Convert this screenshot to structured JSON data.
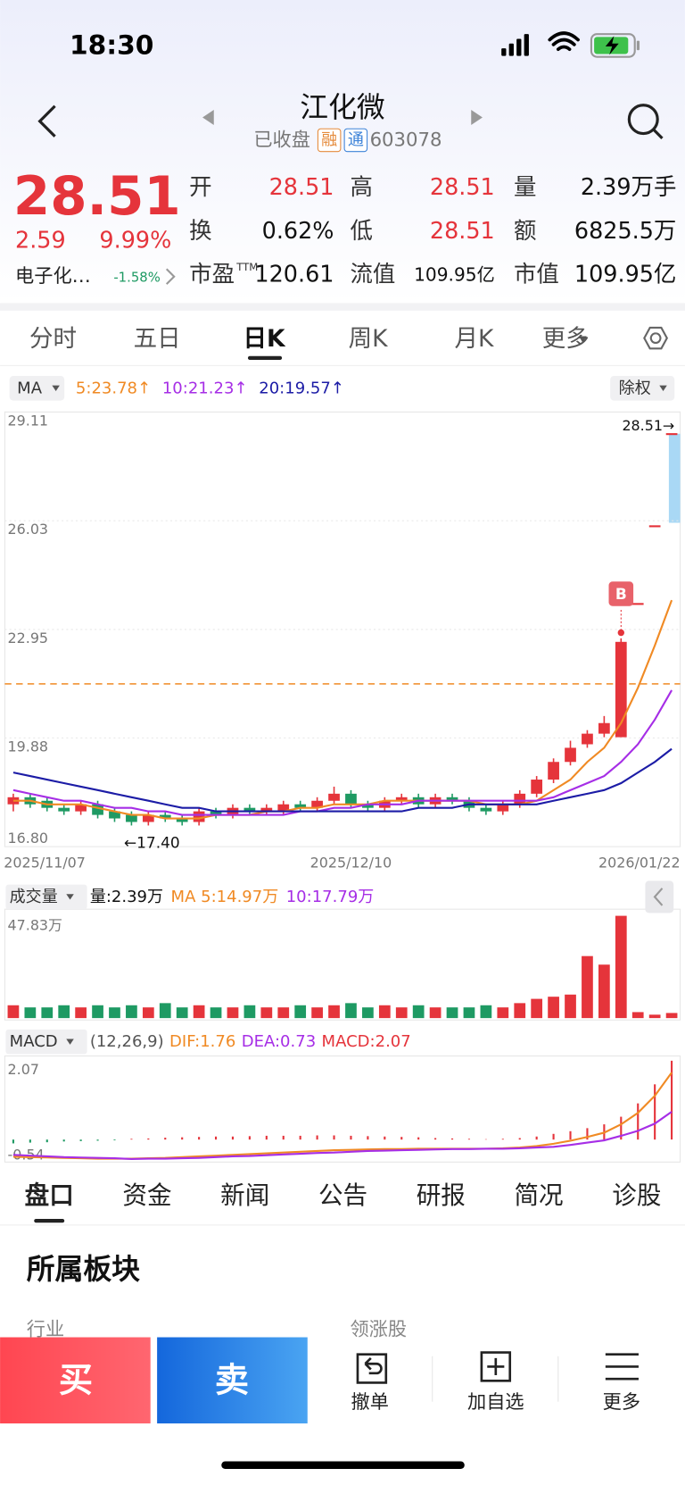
{
  "status_bar": {
    "time": "18:30"
  },
  "header": {
    "title": "江化微",
    "status": "已收盘",
    "tags": [
      "融",
      "通"
    ],
    "code": "603078"
  },
  "quote": {
    "price": "28.51",
    "change": "2.59",
    "change_pct": "9.99%",
    "sector": "电子化…",
    "sector_change": "-1.58%",
    "fields": [
      {
        "label": "开",
        "value": "28.51"
      },
      {
        "label": "高",
        "value": "28.51"
      },
      {
        "label": "量",
        "value": "2.39万手"
      },
      {
        "label": "换",
        "value": "0.62%"
      },
      {
        "label": "低",
        "value": "28.51"
      },
      {
        "label": "额",
        "value": "6825.5万"
      },
      {
        "label": "市盈",
        "sup": "TTM",
        "value": "120.61"
      },
      {
        "label": "流值",
        "value": "109.95亿"
      },
      {
        "label": "市值",
        "value": "109.95亿"
      }
    ]
  },
  "tabs": [
    "分时",
    "五日",
    "日K",
    "周K",
    "月K",
    "更多"
  ],
  "chart_data": [
    {
      "type": "candlestick",
      "indicator": "MA",
      "adjust": "除权",
      "categories": [
        "2025/11/07",
        null,
        null,
        null,
        null,
        null,
        null,
        null,
        null,
        null,
        null,
        null,
        null,
        null,
        null,
        null,
        null,
        null,
        null,
        null,
        "2025/12/10",
        null,
        null,
        null,
        null,
        null,
        null,
        null,
        null,
        null,
        null,
        null,
        null,
        null,
        null,
        null,
        null,
        null,
        null,
        "2026/01/22"
      ],
      "ylim": [
        16.8,
        29.11
      ],
      "yticks": [
        29.11,
        26.03,
        22.95,
        19.88,
        {
          "value": 16.8,
          "label": "16.80"
        }
      ],
      "up_color": "#e5343b",
      "down_color": "#1e9a63",
      "candles": [
        [
          18.0,
          18.2,
          18.3,
          17.8
        ],
        [
          18.2,
          18.0,
          18.3,
          17.9
        ],
        [
          18.1,
          17.9,
          18.2,
          17.8
        ],
        [
          17.9,
          17.8,
          18.0,
          17.7
        ],
        [
          17.8,
          18.0,
          18.1,
          17.7
        ],
        [
          18.0,
          17.7,
          18.1,
          17.6
        ],
        [
          17.8,
          17.6,
          17.9,
          17.5
        ],
        [
          17.7,
          17.5,
          17.8,
          17.4
        ],
        [
          17.5,
          17.7,
          17.8,
          17.4
        ],
        [
          17.7,
          17.6,
          17.8,
          17.5
        ],
        [
          17.6,
          17.5,
          17.7,
          17.4
        ],
        [
          17.5,
          17.8,
          17.9,
          17.4
        ],
        [
          17.8,
          17.7,
          17.9,
          17.6
        ],
        [
          17.7,
          17.9,
          18.0,
          17.6
        ],
        [
          17.9,
          17.8,
          18.0,
          17.7
        ],
        [
          17.8,
          17.9,
          18.0,
          17.7
        ],
        [
          17.8,
          18.0,
          18.1,
          17.7
        ],
        [
          18.0,
          17.9,
          18.1,
          17.8
        ],
        [
          17.9,
          18.1,
          18.2,
          17.8
        ],
        [
          18.1,
          18.3,
          18.5,
          18.0
        ],
        [
          18.3,
          18.0,
          18.4,
          17.9
        ],
        [
          18.0,
          17.9,
          18.1,
          17.8
        ],
        [
          17.9,
          18.1,
          18.2,
          17.8
        ],
        [
          18.1,
          18.2,
          18.3,
          18.0
        ],
        [
          18.2,
          18.0,
          18.3,
          17.9
        ],
        [
          18.0,
          18.2,
          18.3,
          17.9
        ],
        [
          18.2,
          18.1,
          18.3,
          18.0
        ],
        [
          18.1,
          17.9,
          18.2,
          17.8
        ],
        [
          17.9,
          17.8,
          18.0,
          17.7
        ],
        [
          17.8,
          18.0,
          18.1,
          17.7
        ],
        [
          18.0,
          18.3,
          18.4,
          17.9
        ],
        [
          18.3,
          18.7,
          18.8,
          18.2
        ],
        [
          18.7,
          19.2,
          19.3,
          18.6
        ],
        [
          19.2,
          19.6,
          19.8,
          19.1
        ],
        [
          19.7,
          20.0,
          20.1,
          19.6
        ],
        [
          20.0,
          20.3,
          20.5,
          19.9
        ],
        [
          19.9,
          22.6,
          22.7,
          19.9
        ],
        [
          23.7,
          23.7,
          23.7,
          23.7
        ],
        [
          25.9,
          25.9,
          25.9,
          25.9
        ],
        [
          28.51,
          28.51,
          28.51,
          28.51
        ]
      ],
      "series": [
        {
          "name": "5:23.78↑",
          "color": "#f08a24",
          "values": [
            18.1,
            18.1,
            18.0,
            18.0,
            18.0,
            17.9,
            17.8,
            17.7,
            17.7,
            17.6,
            17.6,
            17.6,
            17.7,
            17.7,
            17.7,
            17.8,
            17.8,
            17.9,
            17.9,
            18.0,
            18.0,
            18.0,
            18.1,
            18.1,
            18.1,
            18.1,
            18.1,
            18.1,
            18.0,
            18.0,
            18.0,
            18.1,
            18.4,
            18.7,
            19.2,
            19.6,
            20.3,
            21.3,
            22.5,
            23.78
          ]
        },
        {
          "name": "10:21.23↑",
          "color": "#a62ee6",
          "values": [
            18.4,
            18.3,
            18.2,
            18.1,
            18.1,
            18.0,
            17.9,
            17.9,
            17.8,
            17.8,
            17.7,
            17.7,
            17.7,
            17.7,
            17.7,
            17.7,
            17.7,
            17.8,
            17.8,
            17.9,
            17.9,
            18.0,
            18.0,
            18.0,
            18.1,
            18.1,
            18.1,
            18.1,
            18.1,
            18.1,
            18.1,
            18.1,
            18.2,
            18.4,
            18.6,
            18.8,
            19.2,
            19.7,
            20.4,
            21.23
          ]
        },
        {
          "name": "20:19.57↑",
          "color": "#1c1ca6",
          "values": [
            18.9,
            18.8,
            18.7,
            18.6,
            18.5,
            18.4,
            18.3,
            18.2,
            18.1,
            18.0,
            17.9,
            17.9,
            17.8,
            17.8,
            17.8,
            17.8,
            17.8,
            17.8,
            17.8,
            17.8,
            17.8,
            17.8,
            17.8,
            17.8,
            17.9,
            17.9,
            17.9,
            18.0,
            18.0,
            18.0,
            18.0,
            18.0,
            18.1,
            18.2,
            18.3,
            18.4,
            18.6,
            18.9,
            19.2,
            19.57
          ]
        }
      ],
      "annotations": {
        "high": "28.51→",
        "low": "←17.40",
        "marker": "B"
      },
      "cost_line": 21.41
    },
    {
      "type": "bar",
      "title": "成交量",
      "label": "量:2.39万",
      "legend": [
        {
          "text": "MA 5:14.97万",
          "color": "#f08a24"
        },
        {
          "text": "10:17.79万",
          "color": "#a62ee6"
        }
      ],
      "ylim": [
        0,
        47.83
      ],
      "yticks": [
        {
          "value": 47.83,
          "label": "47.83万"
        }
      ],
      "values": [
        6,
        5,
        5,
        6,
        5,
        6,
        5,
        6,
        5,
        7,
        5,
        6,
        5,
        5,
        6,
        5,
        5,
        6,
        5,
        6,
        7,
        5,
        6,
        5,
        6,
        5,
        5,
        5,
        6,
        5,
        7,
        9,
        10,
        11,
        29,
        25,
        47.83,
        2.8,
        1.6,
        2.39
      ]
    },
    {
      "type": "macd",
      "title": "MACD",
      "params": "(12,26,9)",
      "macd_label": "MACD:2.07",
      "ylim": [
        -0.54,
        2.07
      ],
      "yticks": [
        2.07,
        -0.54
      ],
      "values": [
        -0.1,
        -0.08,
        -0.07,
        -0.05,
        -0.04,
        -0.03,
        -0.02,
        0.02,
        0.03,
        0.05,
        0.06,
        0.07,
        0.08,
        0.08,
        0.09,
        0.1,
        0.1,
        0.1,
        0.11,
        0.11,
        0.1,
        0.09,
        0.08,
        0.07,
        0.06,
        0.04,
        0.03,
        0.02,
        0.01,
        0.02,
        0.04,
        0.08,
        0.15,
        0.22,
        0.3,
        0.4,
        0.6,
        0.95,
        1.45,
        2.07
      ],
      "series": [
        {
          "name": "DIF:1.76",
          "color": "#f08a24",
          "values": [
            -0.45,
            -0.46,
            -0.47,
            -0.48,
            -0.49,
            -0.5,
            -0.5,
            -0.5,
            -0.49,
            -0.48,
            -0.46,
            -0.44,
            -0.42,
            -0.4,
            -0.38,
            -0.36,
            -0.34,
            -0.32,
            -0.3,
            -0.28,
            -0.27,
            -0.26,
            -0.25,
            -0.25,
            -0.24,
            -0.24,
            -0.24,
            -0.24,
            -0.24,
            -0.23,
            -0.21,
            -0.17,
            -0.11,
            -0.03,
            0.07,
            0.18,
            0.4,
            0.7,
            1.15,
            1.76
          ]
        },
        {
          "name": "DEA:0.73",
          "color": "#a62ee6",
          "values": [
            -0.4,
            -0.42,
            -0.44,
            -0.46,
            -0.47,
            -0.48,
            -0.49,
            -0.51,
            -0.5,
            -0.5,
            -0.49,
            -0.48,
            -0.46,
            -0.44,
            -0.43,
            -0.41,
            -0.39,
            -0.37,
            -0.35,
            -0.34,
            -0.32,
            -0.3,
            -0.29,
            -0.28,
            -0.27,
            -0.26,
            -0.25,
            -0.25,
            -0.24,
            -0.24,
            -0.23,
            -0.21,
            -0.19,
            -0.14,
            -0.08,
            -0.02,
            0.1,
            0.23,
            0.42,
            0.73
          ]
        }
      ]
    }
  ],
  "detail_tabs": [
    "盘口",
    "资金",
    "新闻",
    "公告",
    "研报",
    "简况",
    "诊股"
  ],
  "section": {
    "title": "所属板块",
    "columns": [
      "行业",
      "领涨股"
    ]
  },
  "actions": {
    "buy": "买",
    "sell": "卖",
    "tools": [
      "撤单",
      "加自选",
      "更多"
    ]
  }
}
